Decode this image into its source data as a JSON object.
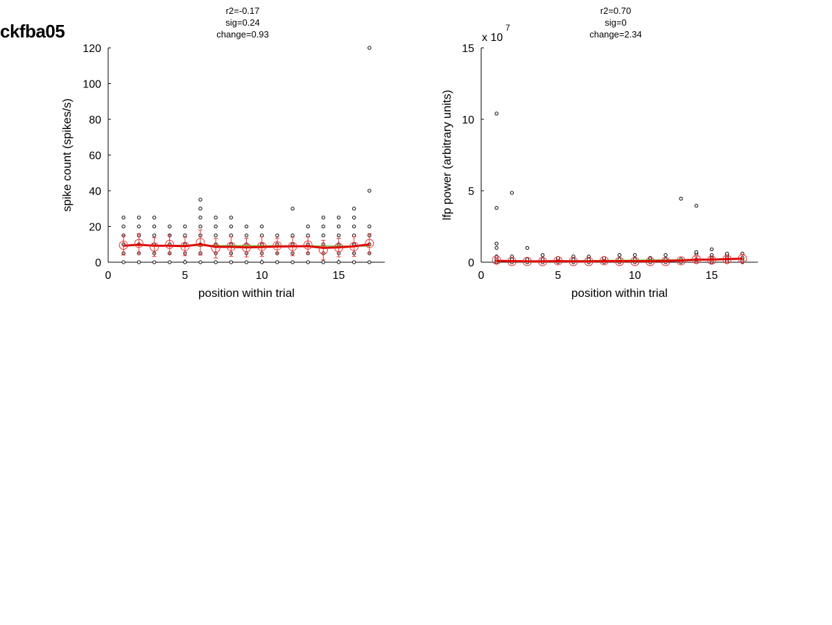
{
  "figure": {
    "title": "ckfba05"
  },
  "chart_data": [
    {
      "type": "scatter",
      "stats": [
        "r2=-0.17",
        "sig=0.24",
        "change=0.93"
      ],
      "xlabel": "position within trial",
      "ylabel": "spike count (spikes/s)",
      "exponent_label": "",
      "xlim": [
        0,
        18
      ],
      "ylim": [
        0,
        120
      ],
      "xticks": [
        0,
        5,
        10,
        15
      ],
      "yticks": [
        0,
        20,
        40,
        60,
        80,
        100,
        120
      ],
      "scatter_points": [
        {
          "x": 1,
          "y": [
            0,
            5,
            10,
            15,
            20,
            25
          ]
        },
        {
          "x": 2,
          "y": [
            0,
            5,
            10,
            15,
            20,
            25
          ]
        },
        {
          "x": 3,
          "y": [
            0,
            5,
            10,
            15,
            20,
            25
          ]
        },
        {
          "x": 4,
          "y": [
            0,
            5,
            10,
            15,
            20
          ]
        },
        {
          "x": 5,
          "y": [
            0,
            5,
            10,
            15,
            20
          ]
        },
        {
          "x": 6,
          "y": [
            0,
            5,
            10,
            15,
            20,
            25,
            30,
            35
          ]
        },
        {
          "x": 7,
          "y": [
            0,
            5,
            10,
            15,
            20,
            25
          ]
        },
        {
          "x": 8,
          "y": [
            0,
            5,
            10,
            15,
            20,
            25
          ]
        },
        {
          "x": 9,
          "y": [
            0,
            5,
            10,
            15,
            20
          ]
        },
        {
          "x": 10,
          "y": [
            0,
            5,
            10,
            15,
            20
          ]
        },
        {
          "x": 11,
          "y": [
            0,
            5,
            10,
            15
          ]
        },
        {
          "x": 12,
          "y": [
            0,
            5,
            10,
            15,
            30
          ]
        },
        {
          "x": 13,
          "y": [
            0,
            5,
            10,
            15,
            20
          ]
        },
        {
          "x": 14,
          "y": [
            0,
            5,
            10,
            15,
            20,
            25
          ]
        },
        {
          "x": 15,
          "y": [
            0,
            5,
            10,
            15,
            20,
            25
          ]
        },
        {
          "x": 16,
          "y": [
            0,
            5,
            10,
            15,
            20,
            25,
            30
          ]
        },
        {
          "x": 17,
          "y": [
            0,
            5,
            10,
            15,
            20,
            40,
            120
          ]
        }
      ],
      "mean": {
        "x": [
          1,
          2,
          3,
          4,
          5,
          6,
          7,
          8,
          9,
          10,
          11,
          12,
          13,
          14,
          15,
          16,
          17
        ],
        "y": [
          9.5,
          10.5,
          8.5,
          10,
          8.8,
          11,
          7.8,
          8.8,
          8.2,
          8.8,
          9.2,
          8.8,
          9.6,
          6.8,
          8.2,
          8.8,
          10.5
        ],
        "err": [
          5.5,
          5.5,
          5.2,
          5.3,
          5.2,
          7,
          5.5,
          5.5,
          5.2,
          5.5,
          4.3,
          5.2,
          4.5,
          5.5,
          5.2,
          5.5,
          5.5
        ]
      },
      "smooth": {
        "y": [
          9.2,
          9.8,
          9.2,
          9.2,
          9.0,
          10.0,
          8.6,
          8.6,
          8.3,
          8.5,
          8.8,
          8.9,
          9.0,
          8.0,
          8.3,
          8.9,
          10.0
        ]
      },
      "fit": {
        "y0": 9.5,
        "y1": 9.0
      },
      "colors": {
        "points": "#000000",
        "mean": "#e83030",
        "smooth": "#e00000",
        "fit": "#6fbf3a"
      }
    },
    {
      "type": "scatter",
      "stats": [
        "r2=0.70",
        "sig=0",
        "change=2.34"
      ],
      "xlabel": "position within trial",
      "ylabel": "lfp power (arbitrary units)",
      "exponent_label": "x 10",
      "exponent_power": "7",
      "xlim": [
        0,
        18
      ],
      "ylim": [
        0,
        15
      ],
      "xticks": [
        0,
        5,
        10,
        15
      ],
      "yticks": [
        0,
        5,
        10,
        15
      ],
      "scatter_points": [
        {
          "x": 1,
          "y": [
            0,
            0.1,
            0.2,
            0.4,
            1.0,
            1.3,
            3.8,
            10.4
          ]
        },
        {
          "x": 2,
          "y": [
            0,
            0.1,
            0.2,
            0.4,
            4.85
          ]
        },
        {
          "x": 3,
          "y": [
            0,
            0.1,
            0.2,
            1.0
          ]
        },
        {
          "x": 4,
          "y": [
            0,
            0.1,
            0.2,
            0.5
          ]
        },
        {
          "x": 5,
          "y": [
            0,
            0.1,
            0.2,
            0.3
          ]
        },
        {
          "x": 6,
          "y": [
            0,
            0.1,
            0.2,
            0.4
          ]
        },
        {
          "x": 7,
          "y": [
            0,
            0.1,
            0.2,
            0.4
          ]
        },
        {
          "x": 8,
          "y": [
            0,
            0.1,
            0.2,
            0.3
          ]
        },
        {
          "x": 9,
          "y": [
            0,
            0.1,
            0.2,
            0.5
          ]
        },
        {
          "x": 10,
          "y": [
            0,
            0.1,
            0.2,
            0.5
          ]
        },
        {
          "x": 11,
          "y": [
            0,
            0.1,
            0.2,
            0.3
          ]
        },
        {
          "x": 12,
          "y": [
            0,
            0.1,
            0.2,
            0.5
          ]
        },
        {
          "x": 13,
          "y": [
            0,
            0.1,
            0.2,
            4.45
          ]
        },
        {
          "x": 14,
          "y": [
            0,
            0.1,
            0.2,
            0.6,
            0.7,
            3.95
          ]
        },
        {
          "x": 15,
          "y": [
            0,
            0.1,
            0.3,
            0.5,
            0.9
          ]
        },
        {
          "x": 16,
          "y": [
            0,
            0.1,
            0.3,
            0.5,
            0.6
          ]
        },
        {
          "x": 17,
          "y": [
            0,
            0.1,
            0.3,
            0.6
          ]
        }
      ],
      "mean": {
        "x": [
          1,
          2,
          3,
          4,
          5,
          6,
          7,
          8,
          9,
          10,
          11,
          12,
          13,
          14,
          15,
          16,
          17
        ],
        "y": [
          0.15,
          0.05,
          0.05,
          0.05,
          0.1,
          0.05,
          0.05,
          0.1,
          0.05,
          0.05,
          0.05,
          0.05,
          0.1,
          0.2,
          0.15,
          0.2,
          0.25
        ],
        "err": [
          0.15,
          0.05,
          0.05,
          0.05,
          0.1,
          0.05,
          0.05,
          0.1,
          0.05,
          0.05,
          0.05,
          0.05,
          0.1,
          0.2,
          0.15,
          0.2,
          0.25
        ]
      },
      "smooth": {
        "y": [
          0.1,
          0.08,
          0.06,
          0.06,
          0.08,
          0.06,
          0.06,
          0.08,
          0.07,
          0.07,
          0.07,
          0.09,
          0.12,
          0.18,
          0.18,
          0.22,
          0.25
        ]
      },
      "fit": {
        "y0": 0.05,
        "y1": 0.22
      },
      "colors": {
        "points": "#000000",
        "mean": "#e83030",
        "smooth": "#e00000",
        "fit": "#6fbf3a"
      }
    }
  ]
}
